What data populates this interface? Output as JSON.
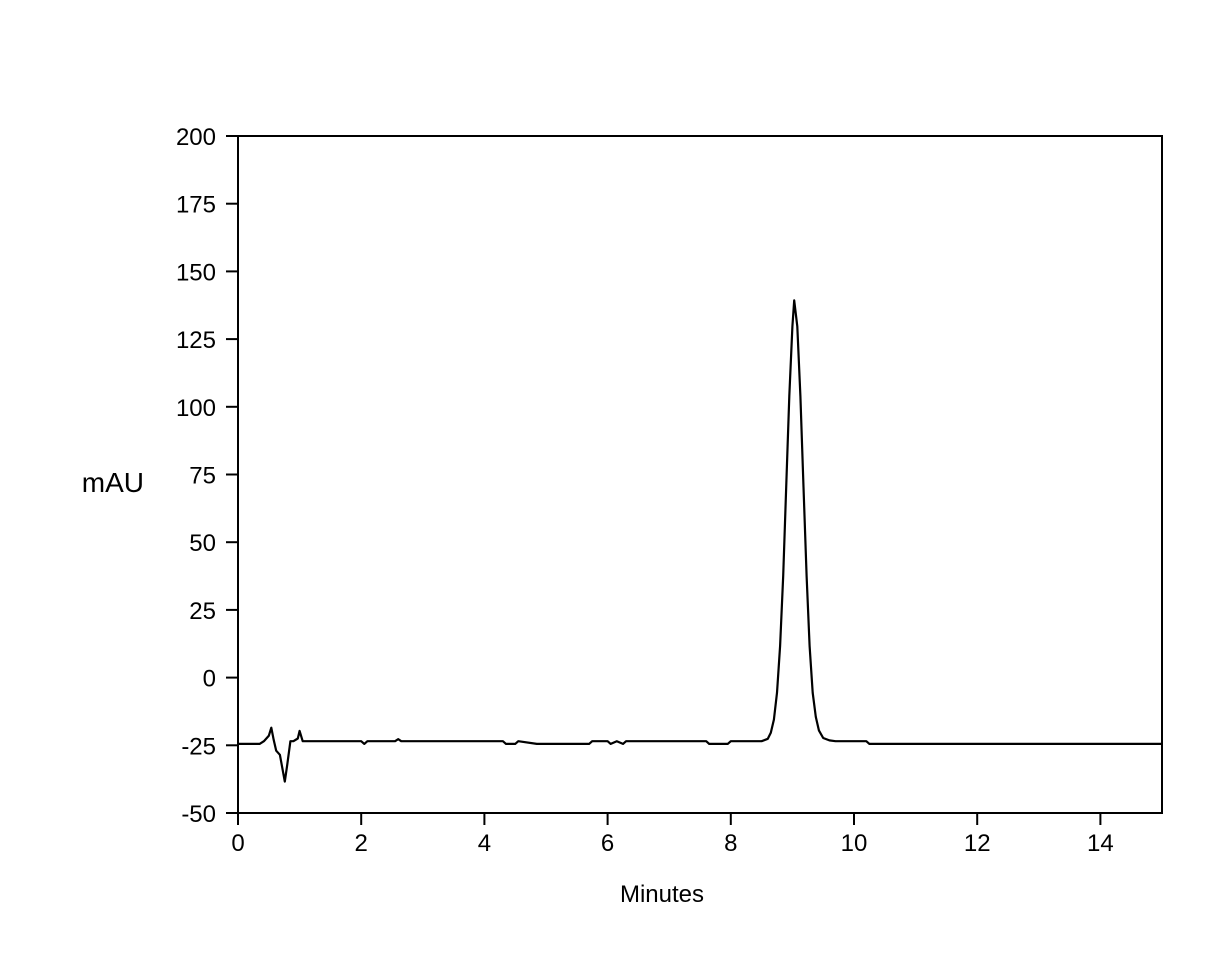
{
  "chart_data": {
    "type": "line",
    "title": "",
    "xlabel": "Minutes",
    "ylabel": "mAU",
    "xlim": [
      0,
      15
    ],
    "ylim": [
      -50,
      200
    ],
    "xticks": [
      0,
      2,
      4,
      6,
      8,
      10,
      12,
      14
    ],
    "yticks": [
      -50,
      -25,
      0,
      25,
      50,
      75,
      100,
      125,
      150,
      175,
      200
    ],
    "grid": false,
    "line_color": "#000000",
    "series": [
      {
        "x": [
          0,
          0.35,
          0.42,
          0.5,
          0.54,
          0.58,
          0.62,
          0.68,
          0.76,
          0.8,
          0.85,
          0.9,
          0.97,
          1.0,
          1.05,
          1.1,
          2.0,
          2.05,
          2.1,
          2.55,
          2.6,
          2.65,
          4.3,
          4.35,
          4.5,
          4.55,
          4.85,
          5.7,
          5.75,
          6.0,
          6.05,
          6.15,
          6.25,
          6.3,
          7.6,
          7.65,
          7.95,
          8.0,
          8.5,
          8.6,
          8.65,
          8.7,
          8.75,
          8.8,
          8.85,
          8.9,
          8.95,
          9.0,
          9.03,
          9.08,
          9.13,
          9.18,
          9.23,
          9.28,
          9.33,
          9.38,
          9.43,
          9.5,
          9.6,
          9.7,
          10.2,
          10.25,
          15
        ],
        "y": [
          -24.5,
          -24.5,
          -23.5,
          -21.5,
          -18.5,
          -23,
          -27,
          -28.5,
          -38.4,
          -32,
          -23.5,
          -23.5,
          -22.5,
          -19.7,
          -23.5,
          -23.5,
          -23.5,
          -24.5,
          -23.5,
          -23.5,
          -22.7,
          -23.5,
          -23.5,
          -24.5,
          -24.5,
          -23.5,
          -24.5,
          -24.5,
          -23.5,
          -23.5,
          -24.5,
          -23.5,
          -24.5,
          -23.5,
          -23.5,
          -24.5,
          -24.5,
          -23.5,
          -23.5,
          -22.6,
          -20.4,
          -15.5,
          -5.6,
          11.7,
          37.6,
          70.4,
          103.9,
          129.7,
          139.3,
          129.7,
          103.9,
          70.4,
          37.6,
          11.7,
          -5.6,
          -14.5,
          -19.5,
          -22.3,
          -23.2,
          -23.5,
          -23.5,
          -24.5,
          -24.5
        ]
      }
    ]
  }
}
